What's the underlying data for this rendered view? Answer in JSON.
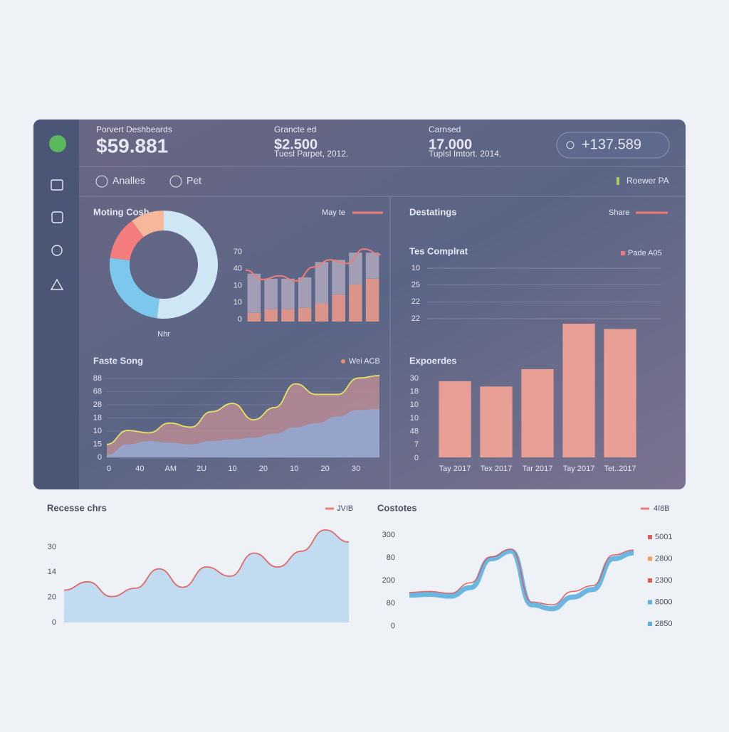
{
  "header": {
    "stats": [
      {
        "label": "Porvert Deshbeards",
        "value": "$59.881"
      },
      {
        "label": "Grancte ed",
        "value": "$2.500",
        "note": "Tuesl Parpet, 2012."
      },
      {
        "label": "Carnsed",
        "value": "17.000",
        "note": "Tuplsl Imtort. 2014."
      }
    ],
    "button": "+137.589"
  },
  "tabs": [
    "Analles",
    "Pet"
  ],
  "status": "Roewer PA",
  "chart_data": [
    {
      "type": "pie",
      "title": "Moting Cosh",
      "legend": "May te",
      "label": "Nhr",
      "values": [
        52,
        25,
        13,
        10
      ],
      "colors": [
        "#cfe6f5",
        "#7cc8ec",
        "#f47c7c",
        "#f7b79a"
      ]
    },
    {
      "type": "bar",
      "stacked": true,
      "y_labels": [
        "70",
        "40",
        "10",
        "10",
        "0"
      ],
      "ylim": [
        0,
        100
      ],
      "series": [
        {
          "color": "#e8998a",
          "values": [
            12,
            17,
            17,
            19,
            25,
            37,
            51,
            59
          ]
        },
        {
          "color": "#a9a4ba",
          "values": [
            54,
            42,
            42,
            42,
            57,
            48,
            44,
            36
          ]
        }
      ],
      "line": {
        "color": "#f07a7a",
        "values": [
          71,
          58,
          63,
          56,
          75,
          85,
          80,
          100,
          92
        ]
      }
    },
    {
      "type": "area",
      "title": "Faste Song",
      "legend": "Wei ACB",
      "y_labels": [
        "88",
        "68",
        "28",
        "18",
        "10",
        "15",
        "0"
      ],
      "x_labels": [
        "0",
        "40",
        "AM",
        "2U",
        "10",
        "20",
        "10",
        "20",
        "30"
      ],
      "ylim": [
        0,
        100
      ],
      "series": [
        {
          "color": "#b98c94",
          "line": "#e8e060",
          "values": [
            16,
            33,
            30,
            42,
            37,
            56,
            66,
            46,
            61,
            90,
            77,
            77,
            97,
            100
          ]
        },
        {
          "color": "#93a9d2",
          "values": [
            3,
            16,
            20,
            18,
            16,
            20,
            22,
            24,
            29,
            37,
            42,
            50,
            58,
            59
          ]
        }
      ]
    },
    {
      "type": "grid",
      "title": "Destatings",
      "legend": "Share",
      "subtitle": "Tes Complrat",
      "legend2": "Pade A05",
      "y_labels": [
        "10",
        "25",
        "22",
        "22"
      ]
    },
    {
      "type": "bar",
      "title": "Expoerdes",
      "y_labels": [
        "30",
        "18",
        "10",
        "10",
        "48",
        "7",
        "0"
      ],
      "ylim": [
        0,
        100
      ],
      "categories": [
        "Tay 2017",
        "Tex 2017",
        "Tar 2017",
        "Tay 2017",
        "Tet..2017"
      ],
      "values": [
        57,
        53,
        66,
        100,
        96
      ],
      "color": "#f7a497"
    },
    {
      "type": "area",
      "title": "Recesse chrs",
      "legend": "JVIB",
      "y_labels": [
        "30",
        "14",
        "20",
        "0"
      ],
      "ylim": [
        0,
        100
      ],
      "series": [
        {
          "color": "#b9d7ee",
          "line": "#e06a6a",
          "values": [
            35,
            44,
            28,
            37,
            58,
            38,
            60,
            50,
            75,
            60,
            77,
            100,
            87
          ]
        }
      ]
    },
    {
      "type": "line",
      "title": "Costotes",
      "legend": "4I8B",
      "y_labels": [
        "300",
        "80",
        "200",
        "80",
        "0"
      ],
      "ylim": [
        0,
        100
      ],
      "series": [
        {
          "color": "#5bb1e0",
          "values": [
            32,
            33,
            31,
            40,
            70,
            78,
            22,
            18,
            30,
            38,
            70,
            76
          ]
        },
        {
          "color": "#e05a5a",
          "values": [
            35,
            36,
            34,
            45,
            72,
            80,
            25,
            22,
            36,
            42,
            74,
            79
          ]
        }
      ],
      "legend_items": [
        {
          "name": "5001",
          "color": "#e05a5a"
        },
        {
          "name": "2800",
          "color": "#f0a060"
        },
        {
          "name": "2300",
          "color": "#e05a5a"
        },
        {
          "name": "8000",
          "color": "#5bb1e0"
        },
        {
          "name": "2850",
          "color": "#5bb1e0"
        }
      ]
    }
  ]
}
